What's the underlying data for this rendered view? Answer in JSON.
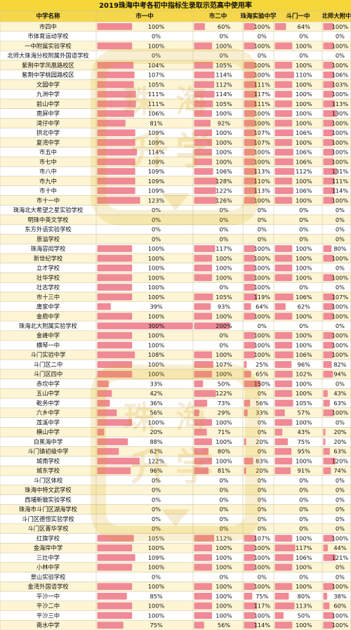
{
  "chart_data": {
    "type": "table",
    "title": "2019珠海中考各初中指标生录取示范高中使用率",
    "columns": [
      "中学名称",
      "市一中",
      "市二中",
      "珠海实验中学",
      "斗门一中",
      "北师大附中"
    ],
    "rows": [
      {
        "name": "市四中",
        "values": [
          "100%",
          "60%",
          "100%",
          "64%",
          "100%"
        ]
      },
      {
        "name": "市体育运动学校",
        "values": [
          "0%",
          "0%",
          "0%",
          "0%",
          "0%"
        ]
      },
      {
        "name": "一中附属实验学校",
        "values": [
          "100%",
          "100%",
          "100%",
          "100%",
          "100%"
        ]
      },
      {
        "name": "北师大珠海分校附属外国语学校",
        "values": [
          "0%",
          "0%",
          "0%",
          "0%",
          "0%"
        ]
      },
      {
        "name": "紫荆中学凤凰路校区",
        "values": [
          "104%",
          "105%",
          "100%",
          "100%",
          "100%"
        ]
      },
      {
        "name": "紫荆中学桃园路校区",
        "values": [
          "107%",
          "114%",
          "100%",
          "110%",
          "106%"
        ]
      },
      {
        "name": "文园中学",
        "values": [
          "105%",
          "112%",
          "111%",
          "100%",
          "103%"
        ]
      },
      {
        "name": "九洲中学",
        "values": [
          "111%",
          "114%",
          "117%",
          "100%",
          "100%"
        ]
      },
      {
        "name": "前山中学",
        "values": [
          "111%",
          "105%",
          "111%",
          "100%",
          "113%"
        ]
      },
      {
        "name": "南屏中学",
        "values": [
          "106%",
          "100%",
          "100%",
          "100%",
          "130%"
        ]
      },
      {
        "name": "湾仔中学",
        "values": [
          "81%",
          "92%",
          "100%",
          "100%",
          "100%"
        ]
      },
      {
        "name": "拱北中学",
        "values": [
          "109%",
          "100%",
          "107%",
          "106%",
          "100%"
        ]
      },
      {
        "name": "夏湾中学",
        "values": [
          "109%",
          "100%",
          "107%",
          "100%",
          "100%"
        ]
      },
      {
        "name": "市五中",
        "values": [
          "114%",
          "100%",
          "100%",
          "106%",
          "100%"
        ]
      },
      {
        "name": "市七中",
        "values": [
          "109%",
          "100%",
          "100%",
          "106%",
          "100%"
        ]
      },
      {
        "name": "市八中",
        "values": [
          "109%",
          "106%",
          "113%",
          "112%",
          "131%"
        ]
      },
      {
        "name": "市九中",
        "values": [
          "109%",
          "128%",
          "110%",
          "100%",
          "111%"
        ]
      },
      {
        "name": "市十中",
        "values": [
          "109%",
          "122%",
          "113%",
          "106%",
          "114%"
        ]
      },
      {
        "name": "市十一中",
        "values": [
          "123%",
          "126%",
          "100%",
          "100%",
          "100%"
        ]
      },
      {
        "name": "珠海北大希望之星实验学校",
        "values": [
          "0%",
          "0%",
          "0%",
          "0%",
          "0%"
        ]
      },
      {
        "name": "明珠中英文学校",
        "values": [
          "0%",
          "0%",
          "0%",
          "0%",
          "0%"
        ]
      },
      {
        "name": "东方外语实验学校",
        "values": [
          "0%",
          "0%",
          "0%",
          "0%",
          "0%"
        ]
      },
      {
        "name": "恩溢学校",
        "values": [
          "0%",
          "0%",
          "0%",
          "0%",
          "0%"
        ]
      },
      {
        "name": "珠海容闳学校",
        "values": [
          "100%",
          "117%",
          "100%",
          "100%",
          "80%"
        ]
      },
      {
        "name": "新世纪学校",
        "values": [
          "100%",
          "100%",
          "100%",
          "100%",
          "100%"
        ]
      },
      {
        "name": "立才学校",
        "values": [
          "100%",
          "100%",
          "100%",
          "100%",
          "0%"
        ]
      },
      {
        "name": "壮华学校",
        "values": [
          "100%",
          "100%",
          "100%",
          "100%",
          "100%"
        ]
      },
      {
        "name": "壮志学校",
        "values": [
          "100%",
          "0%",
          "100%",
          "0%",
          "0%"
        ]
      },
      {
        "name": "市十三中",
        "values": [
          "100%",
          "105%",
          "119%",
          "106%",
          "107%"
        ]
      },
      {
        "name": "唐家中学",
        "values": [
          "39%",
          "93%",
          "64%",
          "62%",
          "100%"
        ]
      },
      {
        "name": "金鼎中学",
        "values": [
          "100%",
          "100%",
          "100%",
          "100%",
          "100%"
        ]
      },
      {
        "name": "珠海北大附属实验学校",
        "values": [
          "300%",
          "200%",
          "0%",
          "0%",
          "0%"
        ]
      },
      {
        "name": "金峰中学",
        "values": [
          "100%",
          "0%",
          "100%",
          "100%",
          "100%"
        ]
      },
      {
        "name": "横琴一中",
        "values": [
          "100%",
          "0%",
          "100%",
          "100%",
          "100%"
        ]
      },
      {
        "name": "斗门实验中学",
        "values": [
          "108%",
          "100%",
          "100%",
          "106%",
          "100%"
        ]
      },
      {
        "name": "斗门区二中",
        "values": [
          "100%",
          "107%",
          "25%",
          "96%",
          "82%"
        ]
      },
      {
        "name": "斗门区四中",
        "values": [
          "100%",
          "100%",
          "65%",
          "102%",
          "94%"
        ]
      },
      {
        "name": "赤坎中学",
        "values": [
          "33%",
          "50%",
          "150%",
          "100%",
          "0%"
        ]
      },
      {
        "name": "五山中学",
        "values": [
          "42%",
          "122%",
          "0%",
          "100%",
          "43%"
        ]
      },
      {
        "name": "乾务中学",
        "values": [
          "36%",
          "73%",
          "56%",
          "105%",
          "63%"
        ]
      },
      {
        "name": "六乡中学",
        "values": [
          "56%",
          "29%",
          "33%",
          "57%",
          "100%"
        ]
      },
      {
        "name": "莲溪中学",
        "values": [
          "100%",
          "100%",
          "0%",
          "100%",
          "0%"
        ]
      },
      {
        "name": "横山中学",
        "values": [
          "20%",
          "71%",
          "0%",
          "43%",
          "20%"
        ]
      },
      {
        "name": "白蕉海中学",
        "values": [
          "88%",
          "100%",
          "20%",
          "75%",
          "20%"
        ]
      },
      {
        "name": "斗门镇初级中学",
        "values": [
          "62%",
          "80%",
          "0%",
          "95%",
          "63%"
        ]
      },
      {
        "name": "城南学校",
        "values": [
          "122%",
          "100%",
          "83%",
          "100%",
          "120%"
        ]
      },
      {
        "name": "城东学校",
        "values": [
          "96%",
          "81%",
          "20%",
          "91%",
          "74%"
        ]
      },
      {
        "name": "斗门区体校",
        "values": [
          "0%",
          "0%",
          "0%",
          "0%",
          "0%"
        ]
      },
      {
        "name": "珠海中特文武学校",
        "values": [
          "0%",
          "0%",
          "0%",
          "0%",
          "0%"
        ]
      },
      {
        "name": "西埔新徽实验学校",
        "values": [
          "0%",
          "0%",
          "0%",
          "0%",
          "0%"
        ]
      },
      {
        "name": "珠海市斗门区湖海学校",
        "values": [
          "0%",
          "0%",
          "0%",
          "0%",
          "0%"
        ]
      },
      {
        "name": "斗门区德恒实验学校",
        "values": [
          "0%",
          "0%",
          "0%",
          "0%",
          "0%"
        ]
      },
      {
        "name": "斗门区菁华学校",
        "values": [
          "0%",
          "0%",
          "0%",
          "0%",
          "0%"
        ]
      },
      {
        "name": "红旗学校",
        "values": [
          "105%",
          "112%",
          "107%",
          "100%",
          "100%"
        ]
      },
      {
        "name": "金海岸中学",
        "values": [
          "100%",
          "100%",
          "100%",
          "117%",
          "44%"
        ]
      },
      {
        "name": "三灶中学",
        "values": [
          "109%",
          "100%",
          "100%",
          "106%",
          "121%"
        ]
      },
      {
        "name": "小林中学",
        "values": [
          "100%",
          "100%",
          "100%",
          "100%",
          "0%"
        ]
      },
      {
        "name": "景山实验学校",
        "values": [
          "0%",
          "0%",
          "0%",
          "0%",
          "0%"
        ]
      },
      {
        "name": "金湾外国语学校",
        "values": [
          "100%",
          "100%",
          "100%",
          "100%",
          "100%"
        ]
      },
      {
        "name": "平沙一中",
        "values": [
          "85%",
          "100%",
          "75%",
          "80%",
          "38%"
        ]
      },
      {
        "name": "平沙二中",
        "values": [
          "100%",
          "100%",
          "117%",
          "113%",
          "60%"
        ]
      },
      {
        "name": "平沙三中",
        "values": [
          "100%",
          "100%",
          "100%",
          "50%",
          "100%"
        ]
      },
      {
        "name": "南水中学",
        "values": [
          "75%",
          "56%",
          "114%",
          "100%",
          "100%"
        ]
      }
    ]
  },
  "watermark": {
    "top": "珠海",
    "middle": "升学"
  },
  "colors": {
    "title_bg": "#f5d73a",
    "header_bg": "#f6d64a",
    "row_a": "#fdf5d3",
    "row_b": "#ffffff",
    "bar": "#ef8a96",
    "bar_light": "#fbd0d6",
    "grid": "#cfc6a8",
    "text": "#111111"
  }
}
